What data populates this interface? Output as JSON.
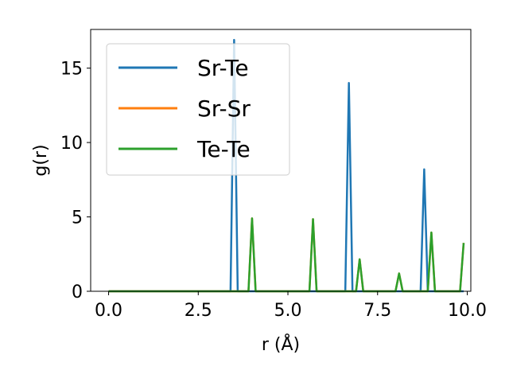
{
  "chart_data": {
    "type": "line",
    "xlabel": "r (Å)",
    "ylabel": "g(r)",
    "xlim": [
      -0.5,
      10.1
    ],
    "ylim": [
      0,
      17.6
    ],
    "xticks": [
      0.0,
      2.5,
      5.0,
      7.5,
      10.0
    ],
    "xtick_labels": [
      "0.0",
      "2.5",
      "5.0",
      "7.5",
      "10.0"
    ],
    "yticks": [
      0,
      5,
      10,
      15
    ],
    "ytick_labels": [
      "0",
      "5",
      "10",
      "15"
    ],
    "grid": false,
    "legend_position": "top-left",
    "series": [
      {
        "name": "Sr-Te",
        "color": "#1f77b4",
        "x": [
          0.0,
          3.4,
          3.5,
          3.6,
          6.6,
          6.7,
          6.8,
          8.7,
          8.8,
          8.9,
          9.9
        ],
        "y": [
          0,
          0,
          16.9,
          0,
          0,
          14.0,
          0,
          0,
          8.2,
          0,
          0
        ]
      },
      {
        "name": "Sr-Sr",
        "color": "#ff7f0e",
        "x": [
          0.0,
          3.9,
          4.0,
          4.1,
          5.6,
          5.7,
          5.8,
          6.9,
          7.0,
          7.1,
          8.0,
          8.1,
          8.2,
          8.9,
          9.0,
          9.1,
          9.8,
          9.9
        ],
        "y": [
          0,
          0,
          4.9,
          0,
          0,
          4.85,
          0,
          0,
          2.15,
          0,
          0,
          1.2,
          0,
          0,
          3.95,
          0,
          0,
          3.25
        ]
      },
      {
        "name": "Te-Te",
        "color": "#2ca02c",
        "x": [
          0.0,
          3.9,
          4.0,
          4.1,
          5.6,
          5.7,
          5.8,
          6.9,
          7.0,
          7.1,
          8.0,
          8.1,
          8.2,
          8.9,
          9.0,
          9.1,
          9.8,
          9.9
        ],
        "y": [
          0,
          0,
          4.9,
          0,
          0,
          4.85,
          0,
          0,
          2.15,
          0,
          0,
          1.2,
          0,
          0,
          3.95,
          0,
          0,
          3.25
        ]
      }
    ]
  }
}
